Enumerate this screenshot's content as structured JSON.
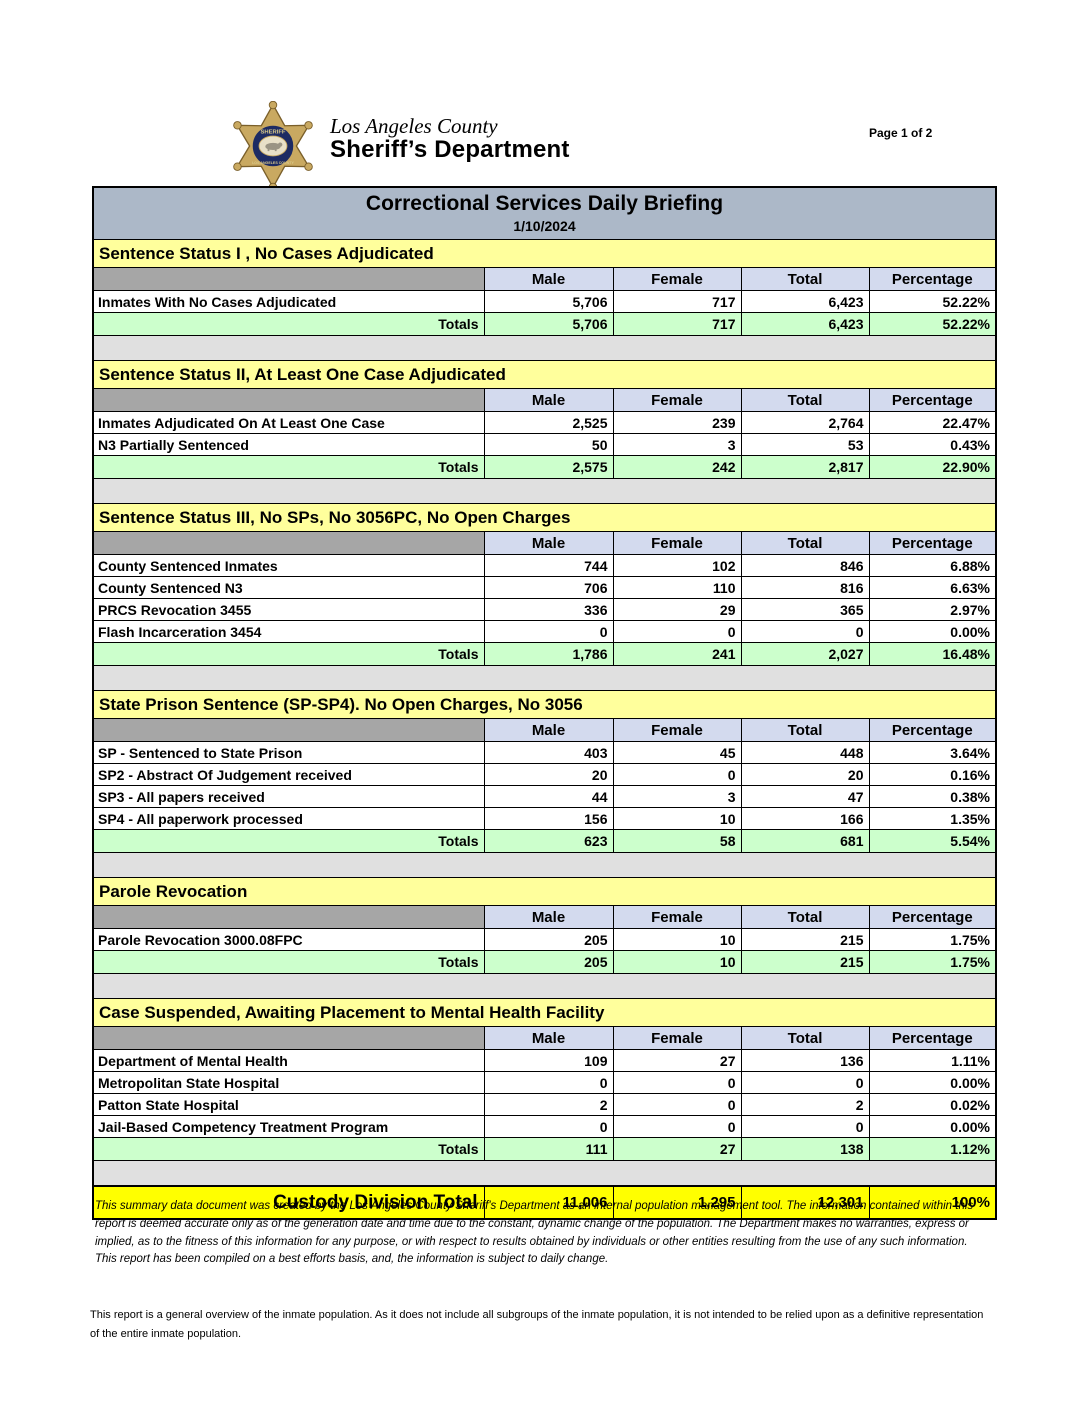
{
  "header": {
    "org_line1": "Los Angeles County",
    "org_line2": "Sheriff’s Department",
    "page_label": "Page 1 of 2",
    "badge_icon": "sheriff-star-badge-icon",
    "badge_top_text": "SHERIFF",
    "badge_bottom_text": "LOS ANGELES COUNTY"
  },
  "report": {
    "title": "Correctional Services Daily Briefing",
    "date": "1/10/2024",
    "columns": [
      "Male",
      "Female",
      "Total",
      "Percentage"
    ],
    "totals_label": "Totals",
    "sections": [
      {
        "title": "Sentence Status I , No Cases Adjudicated",
        "rows": [
          {
            "label": "Inmates With No Cases Adjudicated",
            "male": "5,706",
            "female": "717",
            "total": "6,423",
            "percentage": "52.22%"
          }
        ],
        "totals": {
          "male": "5,706",
          "female": "717",
          "total": "6,423",
          "percentage": "52.22%"
        }
      },
      {
        "title": "Sentence Status II, At Least One Case Adjudicated",
        "rows": [
          {
            "label": "Inmates Adjudicated On At Least One Case",
            "male": "2,525",
            "female": "239",
            "total": "2,764",
            "percentage": "22.47%"
          },
          {
            "label": "N3 Partially Sentenced",
            "male": "50",
            "female": "3",
            "total": "53",
            "percentage": "0.43%"
          }
        ],
        "totals": {
          "male": "2,575",
          "female": "242",
          "total": "2,817",
          "percentage": "22.90%"
        }
      },
      {
        "title": "Sentence Status III, No SPs, No 3056PC, No Open Charges",
        "rows": [
          {
            "label": "County Sentenced Inmates",
            "male": "744",
            "female": "102",
            "total": "846",
            "percentage": "6.88%"
          },
          {
            "label": "County Sentenced N3",
            "male": "706",
            "female": "110",
            "total": "816",
            "percentage": "6.63%"
          },
          {
            "label": "PRCS Revocation 3455",
            "male": "336",
            "female": "29",
            "total": "365",
            "percentage": "2.97%"
          },
          {
            "label": "Flash Incarceration 3454",
            "male": "0",
            "female": "0",
            "total": "0",
            "percentage": "0.00%"
          }
        ],
        "totals": {
          "male": "1,786",
          "female": "241",
          "total": "2,027",
          "percentage": "16.48%"
        }
      },
      {
        "title": "State Prison Sentence (SP-SP4). No Open Charges, No 3056",
        "rows": [
          {
            "label": "SP - Sentenced to State Prison",
            "male": "403",
            "female": "45",
            "total": "448",
            "percentage": "3.64%"
          },
          {
            "label": "SP2 - Abstract Of Judgement received",
            "male": "20",
            "female": "0",
            "total": "20",
            "percentage": "0.16%"
          },
          {
            "label": "SP3 - All papers received",
            "male": "44",
            "female": "3",
            "total": "47",
            "percentage": "0.38%"
          },
          {
            "label": "SP4 - All paperwork processed",
            "male": "156",
            "female": "10",
            "total": "166",
            "percentage": "1.35%"
          }
        ],
        "totals": {
          "male": "623",
          "female": "58",
          "total": "681",
          "percentage": "5.54%"
        }
      },
      {
        "title": "Parole Revocation",
        "rows": [
          {
            "label": "Parole Revocation 3000.08FPC",
            "male": "205",
            "female": "10",
            "total": "215",
            "percentage": "1.75%"
          }
        ],
        "totals": {
          "male": "205",
          "female": "10",
          "total": "215",
          "percentage": "1.75%"
        }
      },
      {
        "title": "Case Suspended, Awaiting Placement to Mental Health Facility",
        "rows": [
          {
            "label": "Department of Mental Health",
            "male": "109",
            "female": "27",
            "total": "136",
            "percentage": "1.11%"
          },
          {
            "label": "Metropolitan State Hospital",
            "male": "0",
            "female": "0",
            "total": "0",
            "percentage": "0.00%"
          },
          {
            "label": "Patton State Hospital",
            "male": "2",
            "female": "0",
            "total": "2",
            "percentage": "0.02%"
          },
          {
            "label": "Jail-Based Competency Treatment Program",
            "male": "0",
            "female": "0",
            "total": "0",
            "percentage": "0.00%"
          }
        ],
        "totals": {
          "male": "111",
          "female": "27",
          "total": "138",
          "percentage": "1.12%"
        }
      }
    ],
    "grand_total": {
      "label": "Custody Division Total",
      "male": "11,006",
      "female": "1,295",
      "total": "12,301",
      "percentage": "100%"
    }
  },
  "colors": {
    "title_bar": "#acb8c8",
    "section_header": "#ffff9c",
    "column_header": "#d3daee",
    "corner_cell": "#a6a6a6",
    "totals_row": "#ccffcc",
    "spacer_row": "#e0e0e0",
    "grand_total_row": "#ffff00",
    "badge_gold": "#c9a961",
    "badge_navy": "#1d2b63"
  },
  "footer": {
    "disclaimer": "This summary data document was created by the Los Angeles County Sheriff's Department as an internal population management tool.  The information contained within this report is deemed accurate only as of the generation date and time due to the constant, dynamic change of the population.  The Department makes no warranties, express or implied, as to the fitness of this information for any purpose, or with respect to results obtained by individuals or other entities resulting from the use of any such information.  This report has been compiled on a best efforts basis, and, the information is subject to daily change.",
    "note": "This report is a general overview of the inmate population.  As it does not include all subgroups of the inmate population, it is not intended to be relied upon as a definitive representation of the entire inmate population."
  }
}
